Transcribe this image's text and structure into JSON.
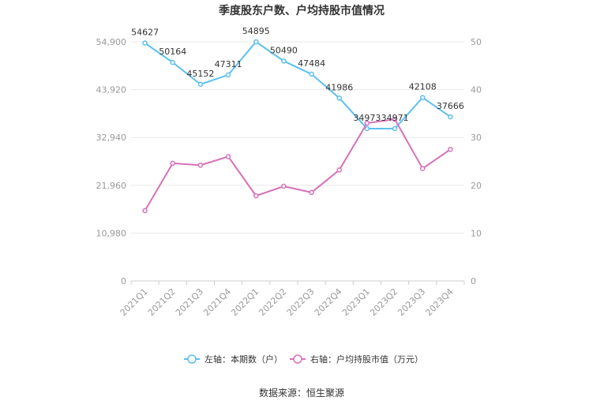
{
  "chart_data": {
    "type": "line",
    "title": "季度股东户数、户均持股市值情况",
    "categories": [
      "2021Q1",
      "2021Q2",
      "2021Q3",
      "2021Q4",
      "2022Q1",
      "2022Q2",
      "2022Q3",
      "2022Q4",
      "2023Q1",
      "2023Q2",
      "2023Q3",
      "2023Q4"
    ],
    "left_axis": {
      "ticks": [
        "0",
        "10,980",
        "21,960",
        "32,940",
        "43,920",
        "54,900"
      ],
      "ylim": [
        0,
        54900
      ]
    },
    "right_axis": {
      "ticks": [
        "0",
        "10",
        "20",
        "30",
        "40",
        "50"
      ],
      "ylim": [
        0,
        50
      ]
    },
    "series": [
      {
        "name": "左轴：本期数（户）",
        "axis": "left",
        "color": "#5bc0f0",
        "values": [
          54627,
          50164,
          45152,
          47311,
          54895,
          50490,
          47484,
          41986,
          34973,
          34971,
          42108,
          37666
        ],
        "labels": [
          "54627",
          "50164",
          "45152",
          "47311",
          "54895",
          "50490",
          "47484",
          "41986",
          "34973",
          "34971",
          "42108",
          "37666"
        ]
      },
      {
        "name": "右轴：户均持股市值（万元）",
        "axis": "right",
        "color": "#d870b8",
        "values": [
          14.7,
          24.6,
          24.2,
          26.0,
          17.8,
          19.8,
          18.5,
          23.2,
          33.0,
          33.8,
          23.5,
          27.5
        ]
      }
    ],
    "grid": true,
    "legend_position": "bottom"
  },
  "source": "数据来源：恒生聚源"
}
